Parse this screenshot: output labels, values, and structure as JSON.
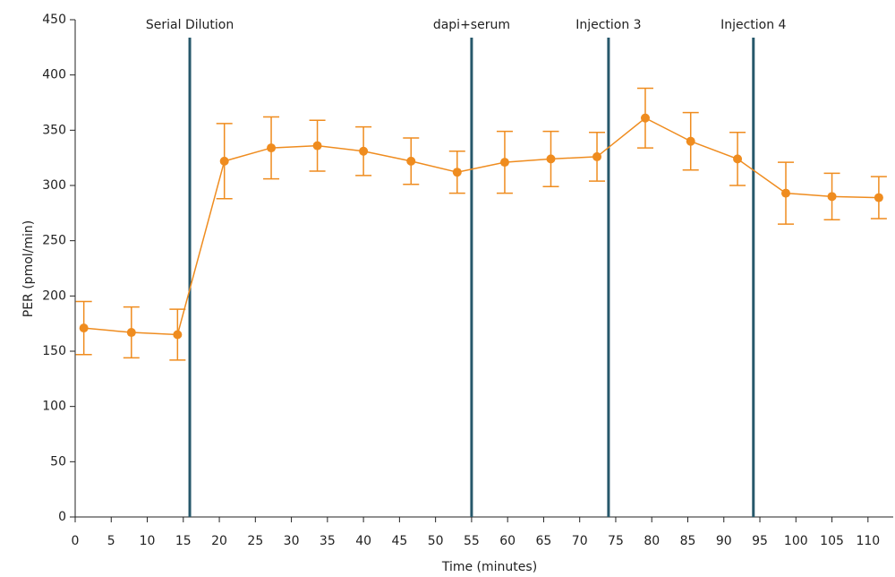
{
  "chart_data": {
    "type": "line",
    "y_label": "PER (pmol/min)",
    "x_label": "Time (minutes)",
    "x": [
      1.2,
      7.8,
      14.2,
      20.7,
      27.2,
      33.6,
      40.0,
      46.6,
      53.0,
      59.6,
      66.0,
      72.4,
      79.1,
      85.4,
      91.9,
      98.6,
      105.0,
      111.5
    ],
    "values": [
      171,
      167,
      165,
      322,
      334,
      336,
      331,
      322,
      312,
      321,
      324,
      326,
      361,
      340,
      324,
      293,
      290,
      289
    ],
    "errors": [
      24,
      23,
      23,
      34,
      28,
      23,
      22,
      21,
      19,
      28,
      25,
      22,
      27,
      26,
      24,
      28,
      21,
      19
    ],
    "color": "#ef8c1f",
    "injections": [
      {
        "x": 15.9,
        "label": "Serial Dilution"
      },
      {
        "x": 55,
        "label": "dapi+serum"
      },
      {
        "x": 74,
        "label": "Injection 3"
      },
      {
        "x": 94.1,
        "label": "Injection 4"
      }
    ],
    "injection_color": "#27586b",
    "xlim": [
      0,
      113.5
    ],
    "xticks": [
      0,
      5,
      10,
      15,
      20,
      25,
      30,
      35,
      40,
      45,
      50,
      55,
      60,
      65,
      70,
      75,
      80,
      85,
      90,
      95,
      100,
      105,
      110
    ],
    "ylim": [
      0,
      450
    ],
    "yticks": [
      0,
      50,
      100,
      150,
      200,
      250,
      300,
      350,
      400,
      450
    ]
  }
}
